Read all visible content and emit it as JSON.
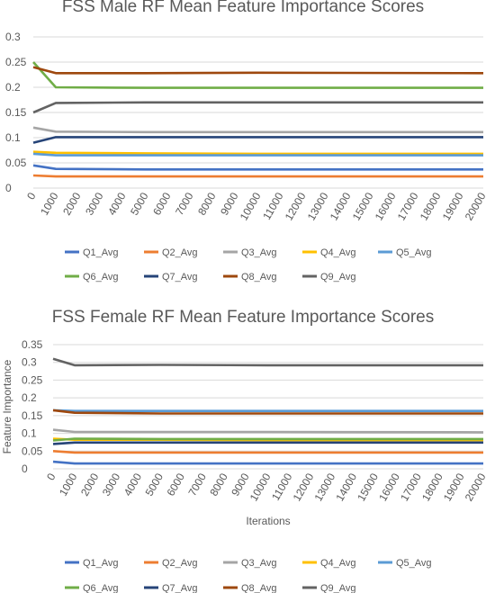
{
  "chart_data": [
    {
      "type": "line",
      "title": "FSS Male RF Mean Feature Importance Scores",
      "xlabel": "",
      "ylabel": "",
      "xlim": [
        0,
        20000
      ],
      "ylim": [
        0,
        0.3
      ],
      "x_ticks": [
        0,
        1000,
        2000,
        3000,
        4000,
        5000,
        6000,
        7000,
        8000,
        9000,
        10000,
        11000,
        12000,
        13000,
        14000,
        15000,
        16000,
        17000,
        18000,
        19000,
        20000
      ],
      "y_ticks": [
        0,
        0.05,
        0.1,
        0.15,
        0.2,
        0.25,
        0.3
      ],
      "grid": "horizontal",
      "legend": "bottom",
      "series": [
        {
          "name": "Q1_Avg",
          "color": "#4472C4",
          "values": [
            0.045,
            0.038,
            0.037,
            0.037,
            0.037
          ]
        },
        {
          "name": "Q2_Avg",
          "color": "#ED7D31",
          "values": [
            0.025,
            0.023,
            0.023,
            0.023,
            0.023
          ]
        },
        {
          "name": "Q3_Avg",
          "color": "#A5A5A5",
          "values": [
            0.12,
            0.112,
            0.111,
            0.111,
            0.111
          ]
        },
        {
          "name": "Q4_Avg",
          "color": "#FFC000",
          "values": [
            0.072,
            0.07,
            0.069,
            0.068,
            0.068
          ]
        },
        {
          "name": "Q5_Avg",
          "color": "#5B9BD5",
          "values": [
            0.068,
            0.065,
            0.065,
            0.065,
            0.065
          ]
        },
        {
          "name": "Q6_Avg",
          "color": "#70AD47",
          "values": [
            0.25,
            0.2,
            0.199,
            0.199,
            0.199
          ]
        },
        {
          "name": "Q7_Avg",
          "color": "#264478",
          "values": [
            0.09,
            0.101,
            0.101,
            0.101,
            0.101
          ]
        },
        {
          "name": "Q8_Avg",
          "color": "#9E480E",
          "values": [
            0.24,
            0.228,
            0.228,
            0.229,
            0.228
          ]
        },
        {
          "name": "Q9_Avg",
          "color": "#636363",
          "values": [
            0.15,
            0.169,
            0.17,
            0.17,
            0.17
          ]
        }
      ],
      "x": [
        0,
        1000,
        5000,
        10000,
        20000
      ]
    },
    {
      "type": "line",
      "title": "FSS Female RF Mean Feature Importance Scores",
      "xlabel": "Iterations",
      "ylabel": "Feature Importance",
      "xlim": [
        0,
        20000
      ],
      "ylim": [
        0,
        0.35
      ],
      "x_ticks": [
        0,
        1000,
        2000,
        3000,
        4000,
        5000,
        6000,
        7000,
        8000,
        9000,
        10000,
        11000,
        12000,
        13000,
        14000,
        15000,
        16000,
        17000,
        18000,
        19000,
        20000
      ],
      "y_ticks": [
        0,
        0.05,
        0.1,
        0.15,
        0.2,
        0.25,
        0.3,
        0.35
      ],
      "grid": "horizontal",
      "legend": "bottom",
      "series": [
        {
          "name": "Q1_Avg",
          "color": "#4472C4",
          "values": [
            0.02,
            0.015,
            0.015,
            0.015,
            0.015
          ]
        },
        {
          "name": "Q2_Avg",
          "color": "#ED7D31",
          "values": [
            0.05,
            0.046,
            0.046,
            0.046,
            0.046
          ]
        },
        {
          "name": "Q3_Avg",
          "color": "#A5A5A5",
          "values": [
            0.11,
            0.104,
            0.104,
            0.104,
            0.103
          ]
        },
        {
          "name": "Q4_Avg",
          "color": "#FFC000",
          "values": [
            0.085,
            0.082,
            0.082,
            0.081,
            0.081
          ]
        },
        {
          "name": "Q5_Avg",
          "color": "#5B9BD5",
          "values": [
            0.165,
            0.163,
            0.163,
            0.163,
            0.163
          ]
        },
        {
          "name": "Q6_Avg",
          "color": "#70AD47",
          "values": [
            0.08,
            0.085,
            0.084,
            0.084,
            0.084
          ]
        },
        {
          "name": "Q7_Avg",
          "color": "#264478",
          "values": [
            0.07,
            0.074,
            0.074,
            0.074,
            0.074
          ]
        },
        {
          "name": "Q8_Avg",
          "color": "#9E480E",
          "values": [
            0.165,
            0.158,
            0.156,
            0.156,
            0.156
          ]
        },
        {
          "name": "Q9_Avg",
          "color": "#636363",
          "values": [
            0.31,
            0.292,
            0.293,
            0.292,
            0.292
          ]
        }
      ],
      "x": [
        0,
        1000,
        5000,
        10000,
        20000
      ]
    }
  ]
}
